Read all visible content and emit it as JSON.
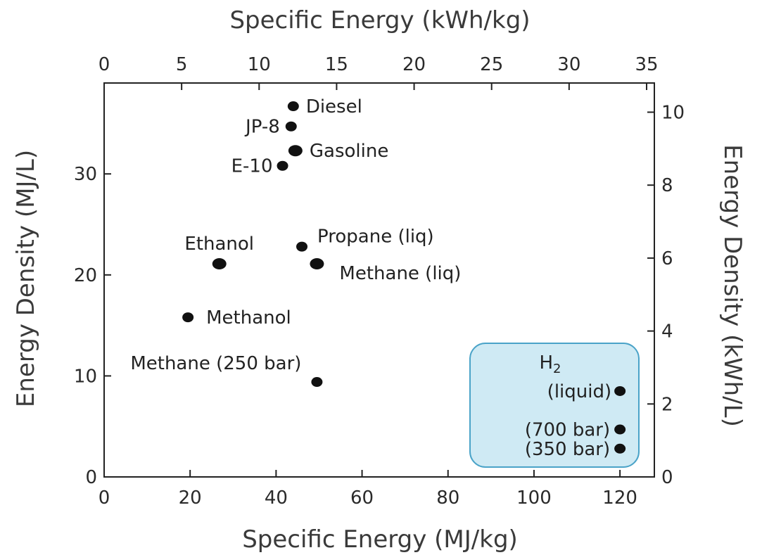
{
  "chart_data": {
    "type": "scatter",
    "title": "",
    "xlabel": "Specific Energy (MJ/kg)",
    "ylabel": "Energy Density (MJ/L)",
    "x2label": "Specific Energy (kWh/kg)",
    "y2label": "Energy Density (kWh/L)",
    "xlim": [
      0,
      128
    ],
    "ylim": [
      0,
      39
    ],
    "x2lim": [
      0,
      35.5
    ],
    "y2lim": [
      0,
      10.8
    ],
    "xticks": [
      0,
      20,
      40,
      60,
      80,
      100,
      120
    ],
    "yticks": [
      0,
      10,
      20,
      30
    ],
    "x2ticks": [
      0,
      5,
      10,
      15,
      20,
      25,
      30,
      35
    ],
    "y2ticks": [
      0,
      2,
      4,
      6,
      8,
      10
    ],
    "grid": false,
    "points": [
      {
        "name": "Diesel",
        "x": 44.0,
        "y": 36.7
      },
      {
        "name": "JP-8",
        "x": 43.5,
        "y": 34.7
      },
      {
        "name": "Gasoline",
        "x": 44.5,
        "y": 32.3
      },
      {
        "name": "E-10",
        "x": 41.5,
        "y": 30.8
      },
      {
        "name": "Ethanol",
        "x": 26.8,
        "y": 21.1
      },
      {
        "name": "Propane (liq)",
        "x": 46.0,
        "y": 22.8
      },
      {
        "name": "Methane (liq)",
        "x": 49.5,
        "y": 21.1
      },
      {
        "name": "Methanol",
        "x": 19.5,
        "y": 15.8
      },
      {
        "name": "Methane (250 bar)",
        "x": 49.5,
        "y": 9.4
      },
      {
        "name": "(liquid)",
        "x": 120.0,
        "y": 8.5
      },
      {
        "name": "(700 bar)",
        "x": 120.0,
        "y": 4.7
      },
      {
        "name": "(350 bar)",
        "x": 120.0,
        "y": 2.8
      }
    ],
    "annotations": {
      "h2_box_title": "H",
      "h2_box_subscript": "2"
    },
    "colors": {
      "marker": "#111111",
      "h2_box_fill": "#cfeaf4",
      "h2_box_stroke": "#4aa3c8"
    }
  }
}
